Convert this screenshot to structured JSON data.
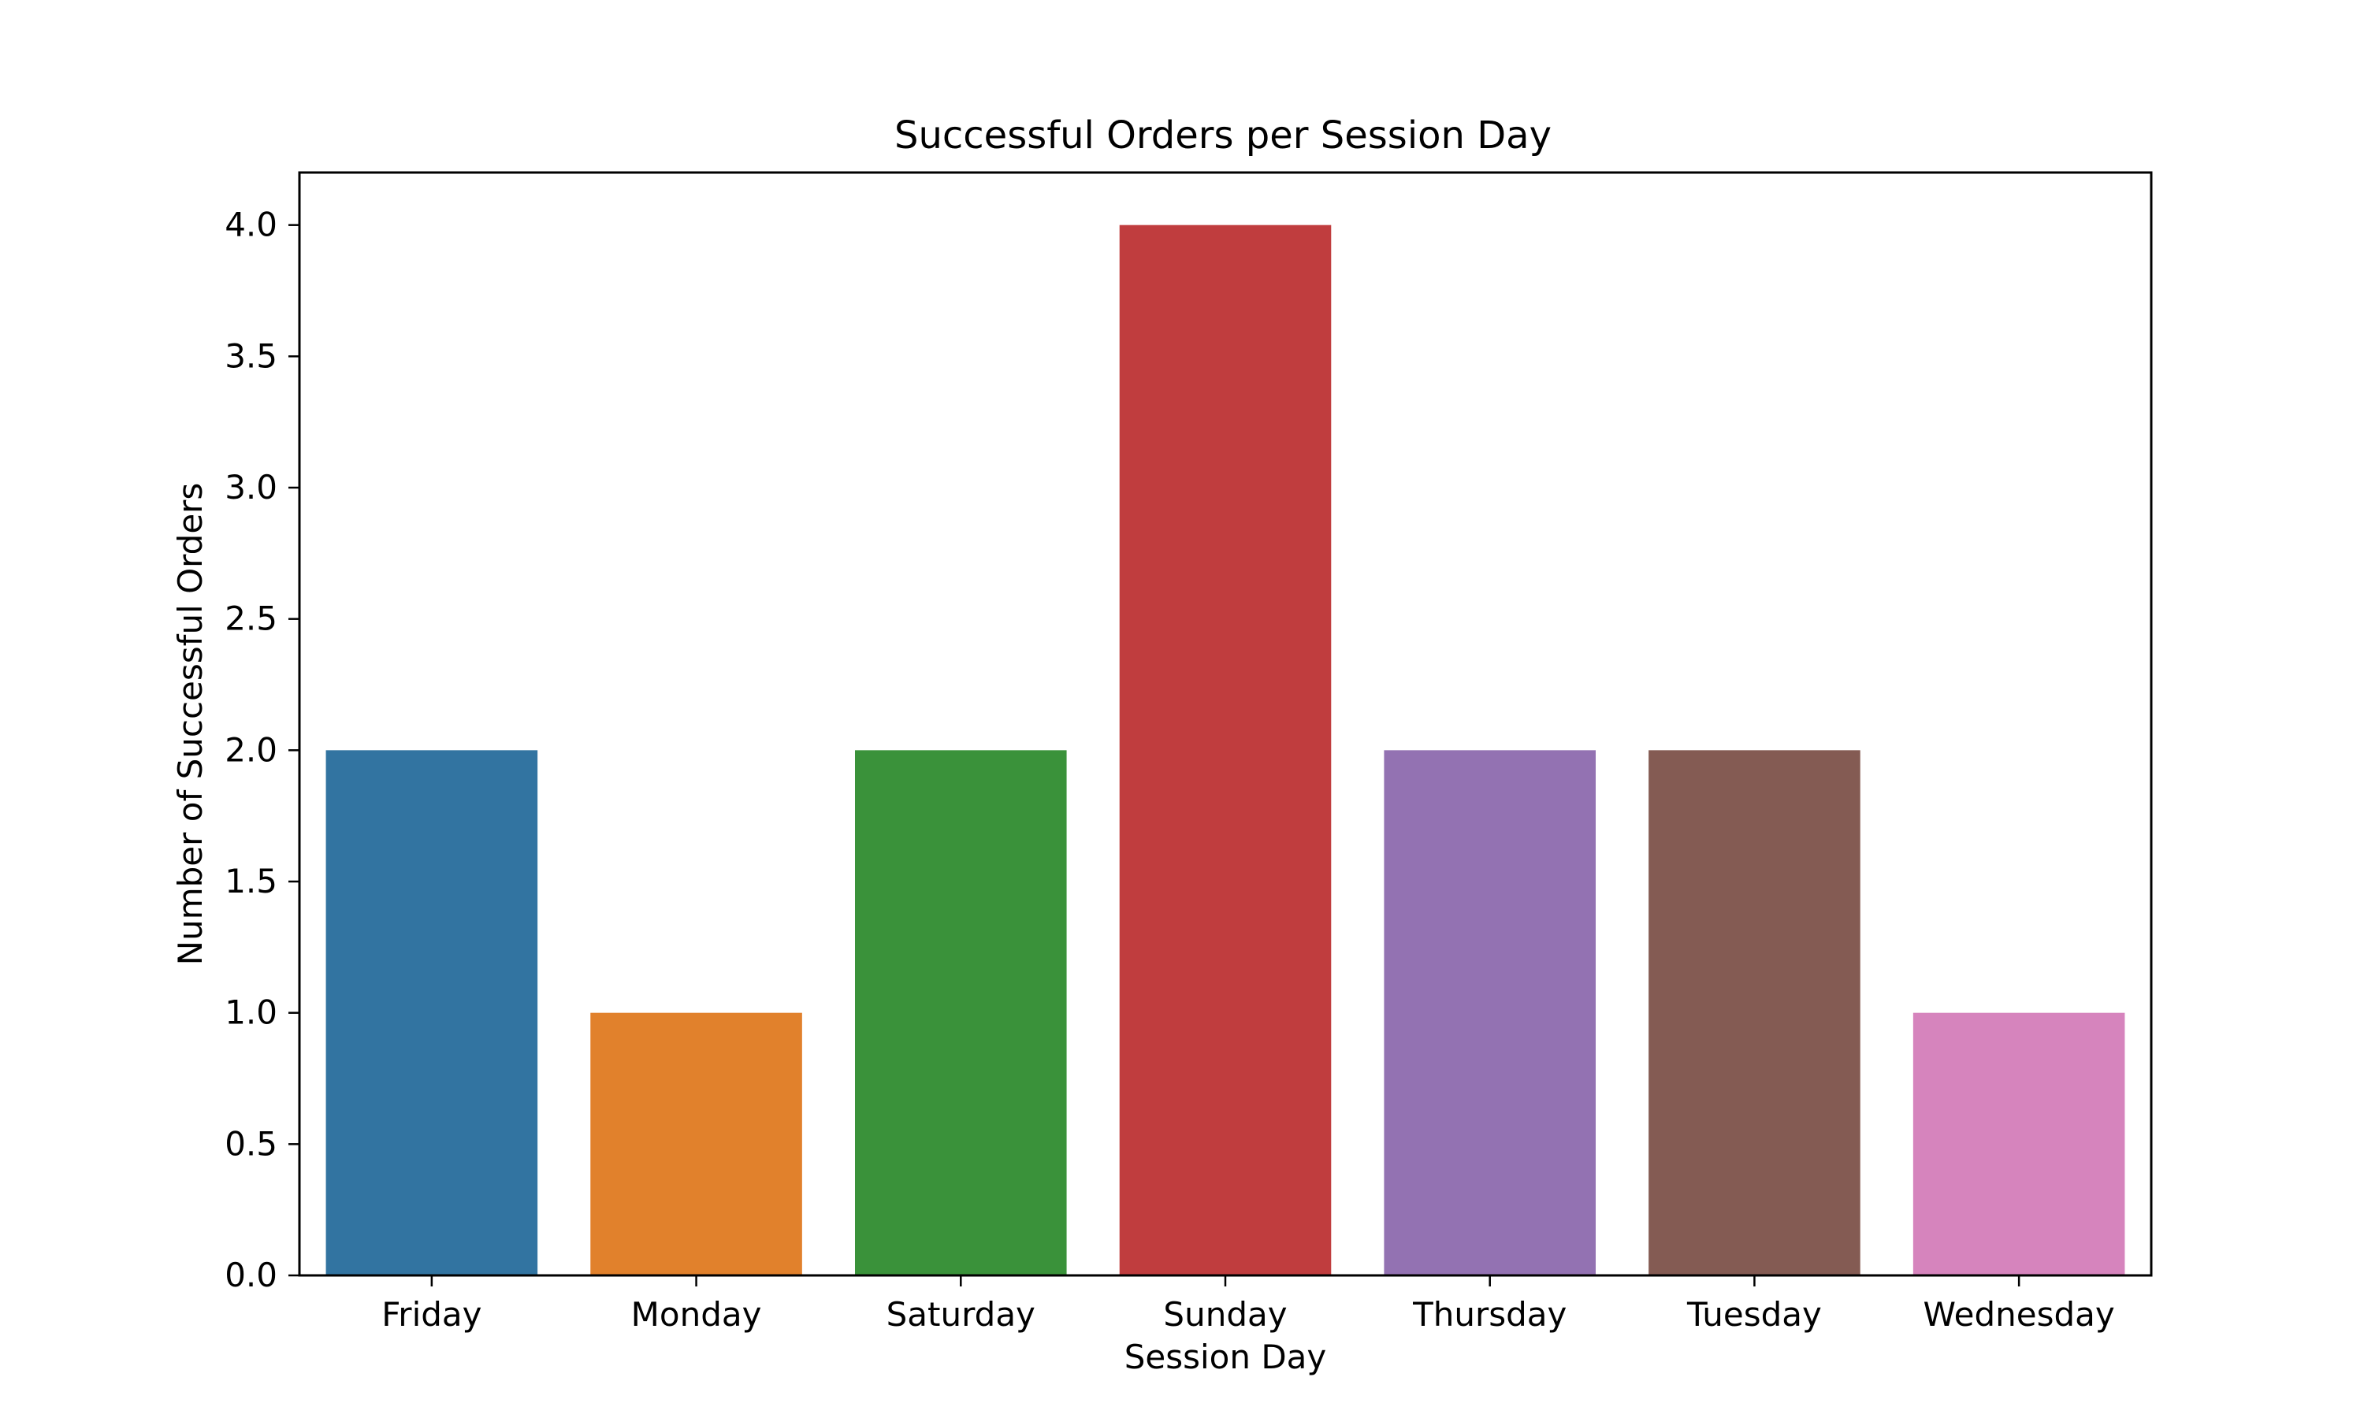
{
  "chart_data": {
    "type": "bar",
    "title": "Successful Orders per Session Day",
    "xlabel": "Session Day",
    "ylabel": "Number of Successful Orders",
    "categories": [
      "Friday",
      "Monday",
      "Saturday",
      "Sunday",
      "Thursday",
      "Tuesday",
      "Wednesday"
    ],
    "values": [
      2,
      1,
      2,
      4,
      2,
      2,
      1
    ],
    "colors": [
      "#3274a1",
      "#e1812c",
      "#3a923a",
      "#c03d3e",
      "#9372b2",
      "#845b53",
      "#d684bd"
    ],
    "ylim": [
      0,
      4.2
    ],
    "yticks": [
      "0.0",
      "0.5",
      "1.0",
      "1.5",
      "2.0",
      "2.5",
      "3.0",
      "3.5",
      "4.0"
    ],
    "grid": false,
    "legend": "none"
  }
}
